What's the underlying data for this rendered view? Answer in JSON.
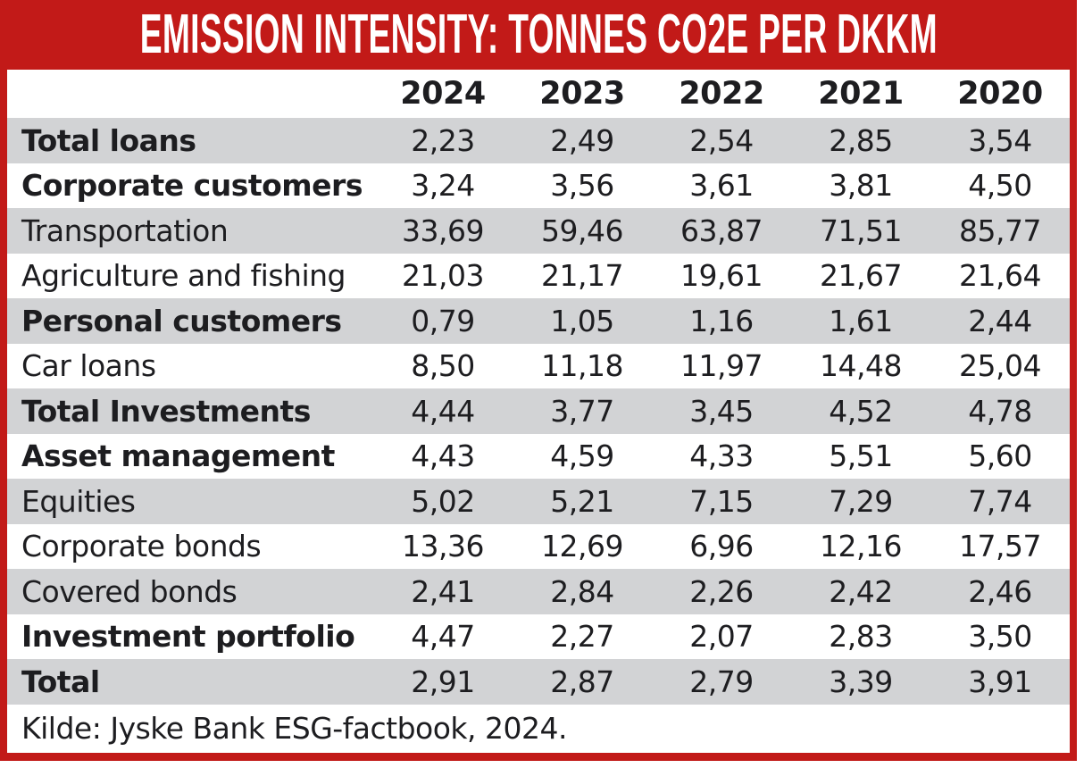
{
  "title": "EMISSION INTENSITY: TONNES CO2E PER DKKM",
  "source": "Kilde: Jyske Bank ESG-factbook, 2024.",
  "chart_data": {
    "type": "table",
    "title": "EMISSION INTENSITY: TONNES CO2E PER DKKM",
    "number_format": "Danish comma decimal separator",
    "columns": [
      "2024",
      "2023",
      "2022",
      "2021",
      "2020"
    ],
    "rows": [
      {
        "label": "Total loans",
        "bold": true,
        "values": [
          "2,23",
          "2,49",
          "2,54",
          "2,85",
          "3,54"
        ]
      },
      {
        "label": "Corporate customers",
        "bold": true,
        "values": [
          "3,24",
          "3,56",
          "3,61",
          "3,81",
          "4,50"
        ]
      },
      {
        "label": "Transportation",
        "bold": false,
        "values": [
          "33,69",
          "59,46",
          "63,87",
          "71,51",
          "85,77"
        ]
      },
      {
        "label": "Agriculture and fishing",
        "bold": false,
        "values": [
          "21,03",
          "21,17",
          "19,61",
          "21,67",
          "21,64"
        ]
      },
      {
        "label": "Personal customers",
        "bold": true,
        "values": [
          "0,79",
          "1,05",
          "1,16",
          "1,61",
          "2,44"
        ]
      },
      {
        "label": "Car loans",
        "bold": false,
        "values": [
          "8,50",
          "11,18",
          "11,97",
          "14,48",
          "25,04"
        ]
      },
      {
        "label": "Total Investments",
        "bold": true,
        "values": [
          "4,44",
          "3,77",
          "3,45",
          "4,52",
          "4,78"
        ]
      },
      {
        "label": "Asset management",
        "bold": true,
        "values": [
          "4,43",
          "4,59",
          "4,33",
          "5,51",
          "5,60"
        ]
      },
      {
        "label": "Equities",
        "bold": false,
        "values": [
          "5,02",
          "5,21",
          "7,15",
          "7,29",
          "7,74"
        ]
      },
      {
        "label": "Corporate bonds",
        "bold": false,
        "values": [
          "13,36",
          "12,69",
          "6,96",
          "12,16",
          "17,57"
        ]
      },
      {
        "label": "Covered bonds",
        "bold": false,
        "values": [
          "2,41",
          "2,84",
          "2,26",
          "2,42",
          "2,46"
        ]
      },
      {
        "label": "Investment portfolio",
        "bold": true,
        "values": [
          "4,47",
          "2,27",
          "2,07",
          "2,83",
          "3,50"
        ]
      },
      {
        "label": "Total",
        "bold": true,
        "values": [
          "2,91",
          "2,87",
          "2,79",
          "3,39",
          "3,91"
        ]
      }
    ],
    "source": "Kilde: Jyske Bank ESG-factbook, 2024."
  },
  "colors": {
    "accent_red": "#c21a18",
    "row_stripe_gray": "#d2d3d5",
    "text_dark": "#1d1d20",
    "title_text": "#ffffff"
  }
}
